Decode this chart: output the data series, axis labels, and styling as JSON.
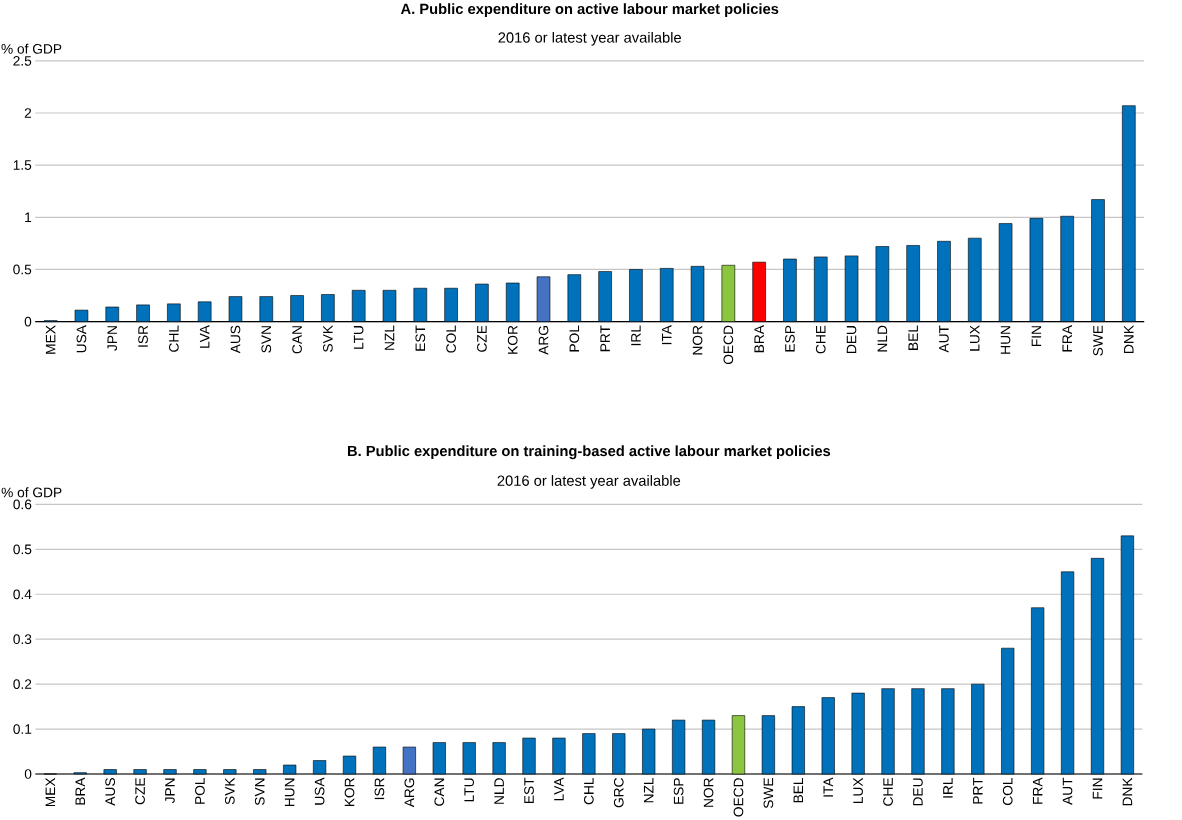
{
  "chart_data": [
    {
      "type": "bar",
      "title": "A. Public expenditure on active labour market policies",
      "subtitle": "2016 or latest year available",
      "ylabel": "% of GDP",
      "categories": [
        "MEX",
        "USA",
        "JPN",
        "ISR",
        "CHL",
        "LVA",
        "AUS",
        "SVN",
        "CAN",
        "SVK",
        "LTU",
        "NZL",
        "EST",
        "COL",
        "CZE",
        "KOR",
        "ARG",
        "POL",
        "PRT",
        "IRL",
        "ITA",
        "NOR",
        "OECD",
        "BRA",
        "ESP",
        "CHE",
        "DEU",
        "NLD",
        "BEL",
        "AUT",
        "LUX",
        "HUN",
        "FIN",
        "FRA",
        "SWE",
        "DNK"
      ],
      "values": [
        0.01,
        0.11,
        0.14,
        0.16,
        0.17,
        0.19,
        0.24,
        0.24,
        0.25,
        0.26,
        0.3,
        0.3,
        0.32,
        0.32,
        0.36,
        0.37,
        0.43,
        0.45,
        0.48,
        0.5,
        0.51,
        0.53,
        0.54,
        0.57,
        0.6,
        0.62,
        0.63,
        0.72,
        0.73,
        0.77,
        0.8,
        0.94,
        0.99,
        1.01,
        1.17,
        2.07
      ],
      "colors": [
        "#0072bc",
        "#0072bc",
        "#0072bc",
        "#0072bc",
        "#0072bc",
        "#0072bc",
        "#0072bc",
        "#0072bc",
        "#0072bc",
        "#0072bc",
        "#0072bc",
        "#0072bc",
        "#0072bc",
        "#0072bc",
        "#0072bc",
        "#0072bc",
        "#4472c4",
        "#0072bc",
        "#0072bc",
        "#0072bc",
        "#0072bc",
        "#0072bc",
        "#8cc641",
        "#ff0000",
        "#0072bc",
        "#0072bc",
        "#0072bc",
        "#0072bc",
        "#0072bc",
        "#0072bc",
        "#0072bc",
        "#0072bc",
        "#0072bc",
        "#0072bc",
        "#0072bc",
        "#0072bc"
      ],
      "ylim": [
        0,
        2.5
      ],
      "yticks": [
        0,
        0.5,
        1,
        1.5,
        2,
        2.5
      ],
      "grid": "y"
    },
    {
      "type": "bar",
      "title": "B. Public expenditure on training-based active labour market policies",
      "subtitle": "2016 or latest year available",
      "ylabel": "% of GDP",
      "categories": [
        "MEX",
        "BRA",
        "AUS",
        "CZE",
        "JPN",
        "POL",
        "SVK",
        "SVN",
        "HUN",
        "USA",
        "KOR",
        "ISR",
        "ARG",
        "CAN",
        "LTU",
        "NLD",
        "EST",
        "LVA",
        "CHL",
        "GRC",
        "NZL",
        "ESP",
        "NOR",
        "OECD",
        "SWE",
        "BEL",
        "ITA",
        "LUX",
        "CHE",
        "DEU",
        "IRL",
        "PRT",
        "COL",
        "FRA",
        "AUT",
        "FIN",
        "DNK"
      ],
      "values": [
        0,
        0.003,
        0.01,
        0.01,
        0.01,
        0.01,
        0.01,
        0.01,
        0.02,
        0.03,
        0.04,
        0.06,
        0.06,
        0.07,
        0.07,
        0.07,
        0.08,
        0.08,
        0.09,
        0.09,
        0.1,
        0.12,
        0.12,
        0.13,
        0.13,
        0.15,
        0.17,
        0.18,
        0.19,
        0.19,
        0.19,
        0.2,
        0.28,
        0.37,
        0.45,
        0.48,
        0.53
      ],
      "colors": [
        "#0072bc",
        "#0072bc",
        "#0072bc",
        "#0072bc",
        "#0072bc",
        "#0072bc",
        "#0072bc",
        "#0072bc",
        "#0072bc",
        "#0072bc",
        "#0072bc",
        "#0072bc",
        "#4472c4",
        "#0072bc",
        "#0072bc",
        "#0072bc",
        "#0072bc",
        "#0072bc",
        "#0072bc",
        "#0072bc",
        "#0072bc",
        "#0072bc",
        "#0072bc",
        "#8cc641",
        "#0072bc",
        "#0072bc",
        "#0072bc",
        "#0072bc",
        "#0072bc",
        "#0072bc",
        "#0072bc",
        "#0072bc",
        "#0072bc",
        "#0072bc",
        "#0072bc",
        "#0072bc",
        "#0072bc"
      ],
      "ylim": [
        0,
        0.6
      ],
      "yticks": [
        0,
        0.1,
        0.2,
        0.3,
        0.4,
        0.5,
        0.6
      ],
      "grid": "y"
    }
  ]
}
